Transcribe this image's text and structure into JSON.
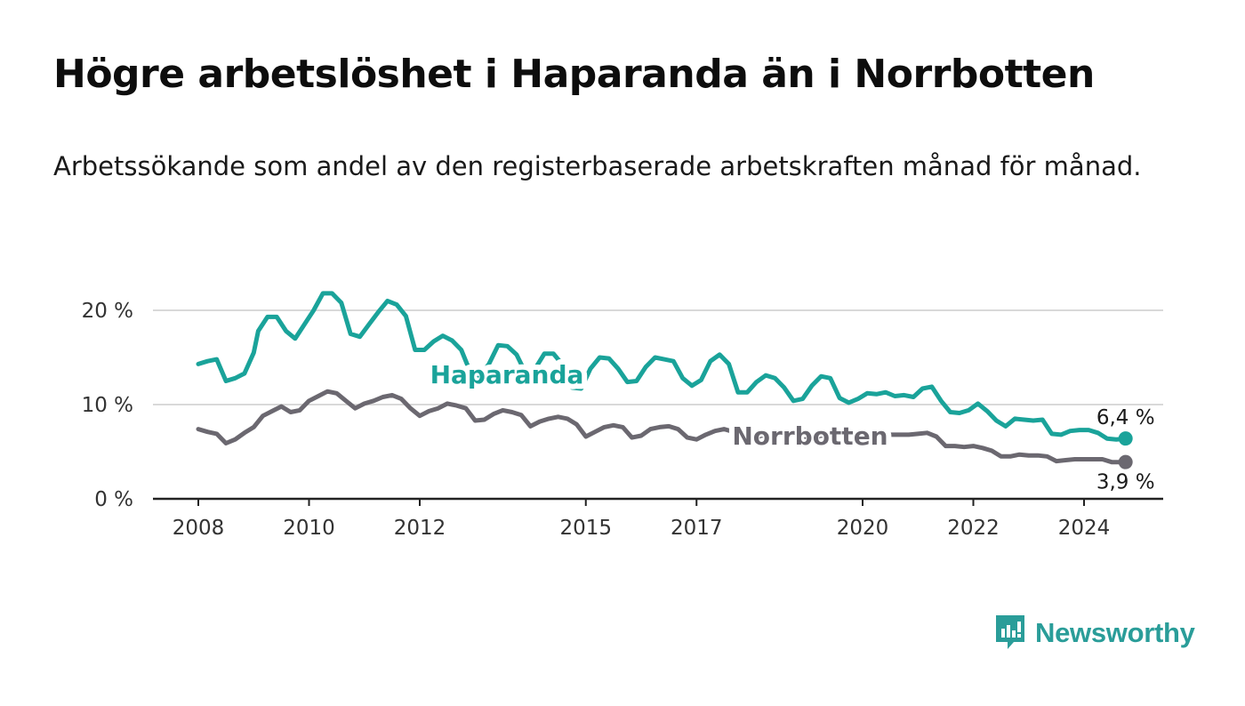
{
  "header": {
    "title": "Högre arbetslöshet i Haparanda än i Norrbotten",
    "subtitle": "Arbetssökande som andel av den registerbaserade arbetskraften månad för månad."
  },
  "brand": {
    "name": "Newsworthy",
    "icon": "newsworthy-logo-icon",
    "color": "#2a9d99"
  },
  "chart_data": {
    "type": "line",
    "x_ticks": [
      "2008",
      "2010",
      "2012",
      "2015",
      "2017",
      "2020",
      "2022",
      "2024"
    ],
    "y_ticks": [
      {
        "value": 0,
        "label": "0 %"
      },
      {
        "value": 10,
        "label": "10 %"
      },
      {
        "value": 20,
        "label": "20 %"
      }
    ],
    "xlim": [
      "2008-01",
      "2025-07"
    ],
    "ylim": [
      0,
      22
    ],
    "grid": true,
    "series": [
      {
        "name": "Haparanda",
        "color": "#1aa39a",
        "end_label": "6,4 %",
        "points": [
          [
            "2008-01",
            14.3
          ],
          [
            "2008-03",
            14.6
          ],
          [
            "2008-05",
            14.8
          ],
          [
            "2008-07",
            12.5
          ],
          [
            "2008-09",
            12.8
          ],
          [
            "2008-11",
            13.3
          ],
          [
            "2009-01",
            15.5
          ],
          [
            "2009-02",
            17.8
          ],
          [
            "2009-04",
            19.3
          ],
          [
            "2009-06",
            19.3
          ],
          [
            "2009-08",
            17.8
          ],
          [
            "2009-10",
            17.0
          ],
          [
            "2009-12",
            18.5
          ],
          [
            "2010-02",
            20.0
          ],
          [
            "2010-04",
            21.8
          ],
          [
            "2010-06",
            21.8
          ],
          [
            "2010-08",
            20.8
          ],
          [
            "2010-10",
            17.5
          ],
          [
            "2010-12",
            17.2
          ],
          [
            "2011-02",
            18.5
          ],
          [
            "2011-04",
            19.8
          ],
          [
            "2011-06",
            21.0
          ],
          [
            "2011-08",
            20.6
          ],
          [
            "2011-10",
            19.4
          ],
          [
            "2011-12",
            15.8
          ],
          [
            "2012-02",
            15.8
          ],
          [
            "2012-04",
            16.7
          ],
          [
            "2012-06",
            17.3
          ],
          [
            "2012-08",
            16.8
          ],
          [
            "2012-10",
            15.8
          ],
          [
            "2012-12",
            13.4
          ],
          [
            "2013-02",
            13.0
          ],
          [
            "2013-04",
            14.3
          ],
          [
            "2013-06",
            16.3
          ],
          [
            "2013-08",
            16.2
          ],
          [
            "2013-10",
            15.3
          ],
          [
            "2013-12",
            13.3
          ],
          [
            "2014-02",
            13.8
          ],
          [
            "2014-04",
            15.4
          ],
          [
            "2014-06",
            15.4
          ],
          [
            "2014-08",
            14.2
          ],
          [
            "2014-10",
            11.8
          ],
          [
            "2014-12",
            11.7
          ],
          [
            "2015-02",
            13.8
          ],
          [
            "2015-04",
            15.0
          ],
          [
            "2015-06",
            14.9
          ],
          [
            "2015-08",
            13.8
          ],
          [
            "2015-10",
            12.4
          ],
          [
            "2015-12",
            12.5
          ],
          [
            "2016-02",
            14.0
          ],
          [
            "2016-04",
            15.0
          ],
          [
            "2016-06",
            14.8
          ],
          [
            "2016-08",
            14.6
          ],
          [
            "2016-10",
            12.8
          ],
          [
            "2016-12",
            12.0
          ],
          [
            "2017-02",
            12.6
          ],
          [
            "2017-04",
            14.6
          ],
          [
            "2017-06",
            15.3
          ],
          [
            "2017-08",
            14.3
          ],
          [
            "2017-10",
            11.3
          ],
          [
            "2017-12",
            11.3
          ],
          [
            "2018-02",
            12.4
          ],
          [
            "2018-04",
            13.1
          ],
          [
            "2018-06",
            12.8
          ],
          [
            "2018-08",
            11.8
          ],
          [
            "2018-10",
            10.4
          ],
          [
            "2018-12",
            10.6
          ],
          [
            "2019-02",
            12.0
          ],
          [
            "2019-04",
            13.0
          ],
          [
            "2019-06",
            12.8
          ],
          [
            "2019-08",
            10.7
          ],
          [
            "2019-10",
            10.2
          ],
          [
            "2019-12",
            10.6
          ],
          [
            "2020-02",
            11.2
          ],
          [
            "2020-04",
            11.1
          ],
          [
            "2020-06",
            11.3
          ],
          [
            "2020-08",
            10.9
          ],
          [
            "2020-10",
            11.0
          ],
          [
            "2020-12",
            10.8
          ],
          [
            "2021-02",
            11.7
          ],
          [
            "2021-04",
            11.9
          ],
          [
            "2021-06",
            10.4
          ],
          [
            "2021-08",
            9.2
          ],
          [
            "2021-10",
            9.1
          ],
          [
            "2021-12",
            9.4
          ],
          [
            "2022-02",
            10.1
          ],
          [
            "2022-04",
            9.3
          ],
          [
            "2022-06",
            8.3
          ],
          [
            "2022-08",
            7.7
          ],
          [
            "2022-10",
            8.5
          ],
          [
            "2022-12",
            8.4
          ],
          [
            "2023-02",
            8.3
          ],
          [
            "2023-04",
            8.4
          ],
          [
            "2023-06",
            6.9
          ],
          [
            "2023-08",
            6.8
          ],
          [
            "2023-10",
            7.2
          ],
          [
            "2023-12",
            7.3
          ],
          [
            "2024-02",
            7.3
          ],
          [
            "2024-04",
            7.0
          ],
          [
            "2024-06",
            6.4
          ],
          [
            "2024-08",
            6.3
          ],
          [
            "2024-10",
            6.4
          ]
        ]
      },
      {
        "name": "Norrbotten",
        "color": "#6b6870",
        "end_label": "3,9 %",
        "points": [
          [
            "2008-01",
            7.4
          ],
          [
            "2008-03",
            7.1
          ],
          [
            "2008-05",
            6.9
          ],
          [
            "2008-07",
            5.9
          ],
          [
            "2008-09",
            6.3
          ],
          [
            "2008-11",
            7.0
          ],
          [
            "2009-01",
            7.6
          ],
          [
            "2009-03",
            8.8
          ],
          [
            "2009-05",
            9.3
          ],
          [
            "2009-07",
            9.8
          ],
          [
            "2009-09",
            9.2
          ],
          [
            "2009-11",
            9.4
          ],
          [
            "2010-01",
            10.4
          ],
          [
            "2010-03",
            10.9
          ],
          [
            "2010-05",
            11.4
          ],
          [
            "2010-07",
            11.2
          ],
          [
            "2010-09",
            10.4
          ],
          [
            "2010-11",
            9.6
          ],
          [
            "2011-01",
            10.1
          ],
          [
            "2011-03",
            10.4
          ],
          [
            "2011-05",
            10.8
          ],
          [
            "2011-07",
            11.0
          ],
          [
            "2011-09",
            10.6
          ],
          [
            "2011-11",
            9.6
          ],
          [
            "2012-01",
            8.8
          ],
          [
            "2012-03",
            9.3
          ],
          [
            "2012-05",
            9.6
          ],
          [
            "2012-07",
            10.1
          ],
          [
            "2012-09",
            9.9
          ],
          [
            "2012-11",
            9.6
          ],
          [
            "2013-01",
            8.3
          ],
          [
            "2013-03",
            8.4
          ],
          [
            "2013-05",
            9.0
          ],
          [
            "2013-07",
            9.4
          ],
          [
            "2013-09",
            9.2
          ],
          [
            "2013-11",
            8.9
          ],
          [
            "2014-01",
            7.7
          ],
          [
            "2014-03",
            8.2
          ],
          [
            "2014-05",
            8.5
          ],
          [
            "2014-07",
            8.7
          ],
          [
            "2014-09",
            8.5
          ],
          [
            "2014-11",
            7.9
          ],
          [
            "2015-01",
            6.6
          ],
          [
            "2015-03",
            7.1
          ],
          [
            "2015-05",
            7.6
          ],
          [
            "2015-07",
            7.8
          ],
          [
            "2015-09",
            7.6
          ],
          [
            "2015-11",
            6.5
          ],
          [
            "2016-01",
            6.7
          ],
          [
            "2016-03",
            7.4
          ],
          [
            "2016-05",
            7.6
          ],
          [
            "2016-07",
            7.7
          ],
          [
            "2016-09",
            7.4
          ],
          [
            "2016-11",
            6.5
          ],
          [
            "2017-01",
            6.3
          ],
          [
            "2017-03",
            6.8
          ],
          [
            "2017-05",
            7.2
          ],
          [
            "2017-07",
            7.4
          ],
          [
            "2017-09",
            7.1
          ],
          [
            "2017-11",
            6.2
          ],
          [
            "2018-01",
            6.4
          ],
          [
            "2018-03",
            6.7
          ],
          [
            "2018-05",
            6.9
          ],
          [
            "2018-07",
            6.8
          ],
          [
            "2018-09",
            6.6
          ],
          [
            "2018-11",
            6.5
          ],
          [
            "2019-01",
            6.4
          ],
          [
            "2019-03",
            6.6
          ],
          [
            "2019-05",
            6.8
          ],
          [
            "2019-07",
            6.9
          ],
          [
            "2019-09",
            6.5
          ],
          [
            "2019-11",
            6.3
          ],
          [
            "2020-01",
            6.4
          ],
          [
            "2020-03",
            6.6
          ],
          [
            "2020-05",
            6.8
          ],
          [
            "2020-07",
            6.8
          ],
          [
            "2020-09",
            6.8
          ],
          [
            "2020-11",
            6.8
          ],
          [
            "2021-01",
            6.9
          ],
          [
            "2021-03",
            7.0
          ],
          [
            "2021-05",
            6.6
          ],
          [
            "2021-07",
            5.6
          ],
          [
            "2021-09",
            5.6
          ],
          [
            "2021-11",
            5.5
          ],
          [
            "2022-01",
            5.6
          ],
          [
            "2022-03",
            5.4
          ],
          [
            "2022-05",
            5.1
          ],
          [
            "2022-07",
            4.5
          ],
          [
            "2022-09",
            4.5
          ],
          [
            "2022-11",
            4.7
          ],
          [
            "2023-01",
            4.6
          ],
          [
            "2023-03",
            4.6
          ],
          [
            "2023-05",
            4.5
          ],
          [
            "2023-07",
            4.0
          ],
          [
            "2023-09",
            4.1
          ],
          [
            "2023-11",
            4.2
          ],
          [
            "2024-01",
            4.2
          ],
          [
            "2024-03",
            4.2
          ],
          [
            "2024-05",
            4.2
          ],
          [
            "2024-07",
            3.9
          ],
          [
            "2024-10",
            3.9
          ]
        ]
      }
    ]
  }
}
